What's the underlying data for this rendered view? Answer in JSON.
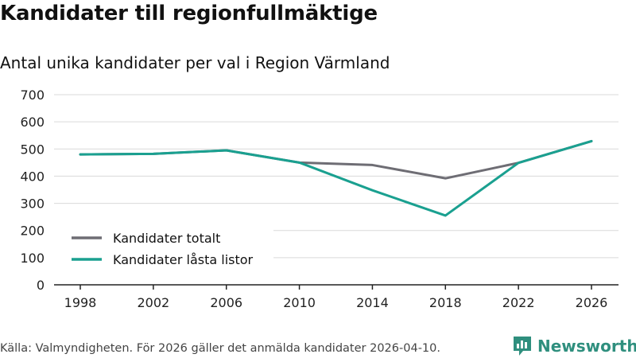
{
  "chart_data": {
    "type": "line",
    "title": "Kandidater till regionfullmäktige",
    "subtitle": "Antal unika kandidater per val i Region Värmland",
    "categories": [
      "1998",
      "2002",
      "2006",
      "2010",
      "2014",
      "2018",
      "2022",
      "2026"
    ],
    "series": [
      {
        "name": "Kandidater totalt",
        "color": "#6e6d74",
        "values": [
          480,
          482,
          495,
          450,
          441,
          392,
          449,
          529
        ]
      },
      {
        "name": "Kandidater låsta listor",
        "color": "#1aa090",
        "values": [
          480,
          482,
          495,
          450,
          348,
          255,
          449,
          529
        ]
      }
    ],
    "ylim": [
      0,
      700
    ],
    "yticks": [
      0,
      100,
      200,
      300,
      400,
      500,
      600,
      700
    ],
    "xlabel": "",
    "ylabel": "",
    "grid": true,
    "legend_position": "bottom-left"
  },
  "footer": {
    "source": "Källa: Valmyndigheten. För 2026 gäller det anmälda kandidater 2026-04-10.",
    "brand": "Newsworthy"
  },
  "colors": {
    "brand": "#2f8f7e",
    "grid": "#d9d9d9",
    "axis": "#222222"
  }
}
